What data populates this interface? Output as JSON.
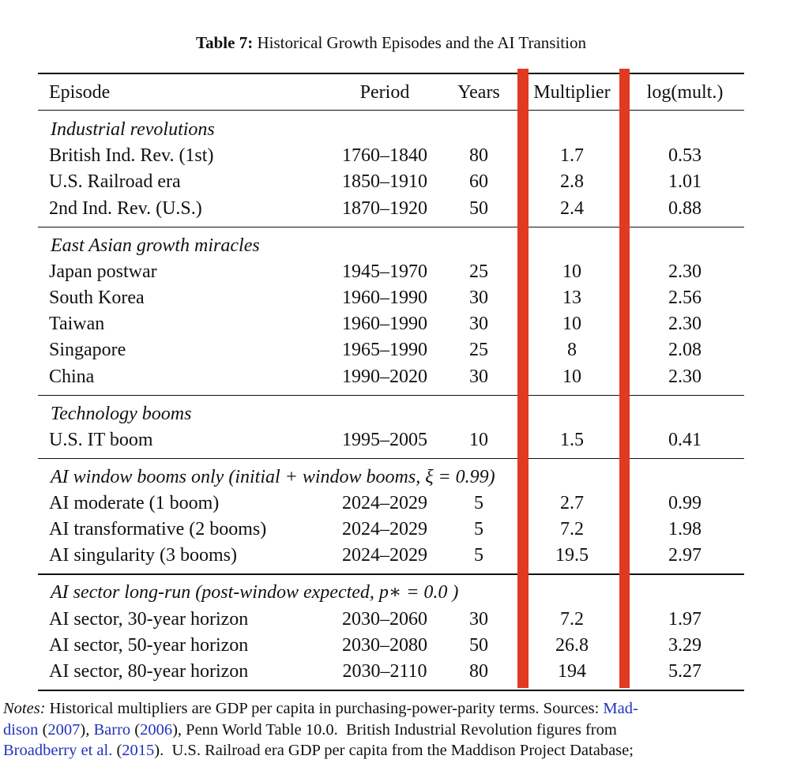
{
  "caption": {
    "label": "Table 7:",
    "title": "Historical Growth Episodes and the AI Transition"
  },
  "table": {
    "header": [
      "Episode",
      "Period",
      "Years",
      "Multiplier",
      "log(mult.)"
    ],
    "groups": [
      {
        "title": "Industrial revolutions",
        "rows": [
          [
            "British Ind. Rev. (1st)",
            "1760–1840",
            "80",
            "1.7",
            "0.53"
          ],
          [
            "U.S. Railroad era",
            "1850–1910",
            "60",
            "2.8",
            "1.01"
          ],
          [
            "2nd Ind. Rev. (U.S.)",
            "1870–1920",
            "50",
            "2.4",
            "0.88"
          ]
        ]
      },
      {
        "title": "East Asian growth miracles",
        "rows": [
          [
            "Japan postwar",
            "1945–1970",
            "25",
            "10",
            "2.30"
          ],
          [
            "South Korea",
            "1960–1990",
            "30",
            "13",
            "2.56"
          ],
          [
            "Taiwan",
            "1960–1990",
            "30",
            "10",
            "2.30"
          ],
          [
            "Singapore",
            "1965–1990",
            "25",
            "8",
            "2.08"
          ],
          [
            "China",
            "1990–2020",
            "30",
            "10",
            "2.30"
          ]
        ]
      },
      {
        "title": "Technology booms",
        "rows": [
          [
            "U.S. IT boom",
            "1995–2005",
            "10",
            "1.5",
            "0.41"
          ]
        ]
      },
      {
        "title": "AI window booms only (initial + window booms, ξ = 0.99)",
        "rows": [
          [
            "AI moderate (1 boom)",
            "2024–2029",
            "5",
            "2.7",
            "0.99"
          ],
          [
            "AI transformative (2 booms)",
            "2024–2029",
            "5",
            "7.2",
            "1.98"
          ],
          [
            "AI singularity (3 booms)",
            "2024–2029",
            "5",
            "19.5",
            "2.97"
          ]
        ]
      },
      {
        "title": "AI sector long-run (post-window expected, p∗ = 0.0 )",
        "rows": [
          [
            "AI sector, 30-year horizon",
            "2030–2060",
            "30",
            "7.2",
            "1.97"
          ],
          [
            "AI sector, 50-year horizon",
            "2030–2080",
            "50",
            "26.8",
            "3.29"
          ],
          [
            "AI sector, 80-year horizon",
            "2030–2110",
            "80",
            "194",
            "5.27"
          ]
        ]
      }
    ]
  },
  "notes": {
    "label": "Notes:",
    "lines": [
      [
        {
          "text": " Historical multipliers are GDP per capita in purchasing-power-parity terms. Sources: "
        },
        {
          "text": "Mad-",
          "link": true
        }
      ],
      [
        {
          "text": "dison",
          "link": true
        },
        {
          "text": " ("
        },
        {
          "text": "2007",
          "link": true
        },
        {
          "text": "), "
        },
        {
          "text": "Barro",
          "link": true
        },
        {
          "text": " ("
        },
        {
          "text": "2006",
          "link": true
        },
        {
          "text": "), Penn World Table 10.0.  British Industrial Revolution figures from"
        }
      ],
      [
        {
          "text": "Broadberry et al.",
          "link": true
        },
        {
          "text": " ("
        },
        {
          "text": "2015",
          "link": true
        },
        {
          "text": ").  U.S. Railroad era GDP per capita from the Maddison Project Database;"
        }
      ]
    ]
  }
}
